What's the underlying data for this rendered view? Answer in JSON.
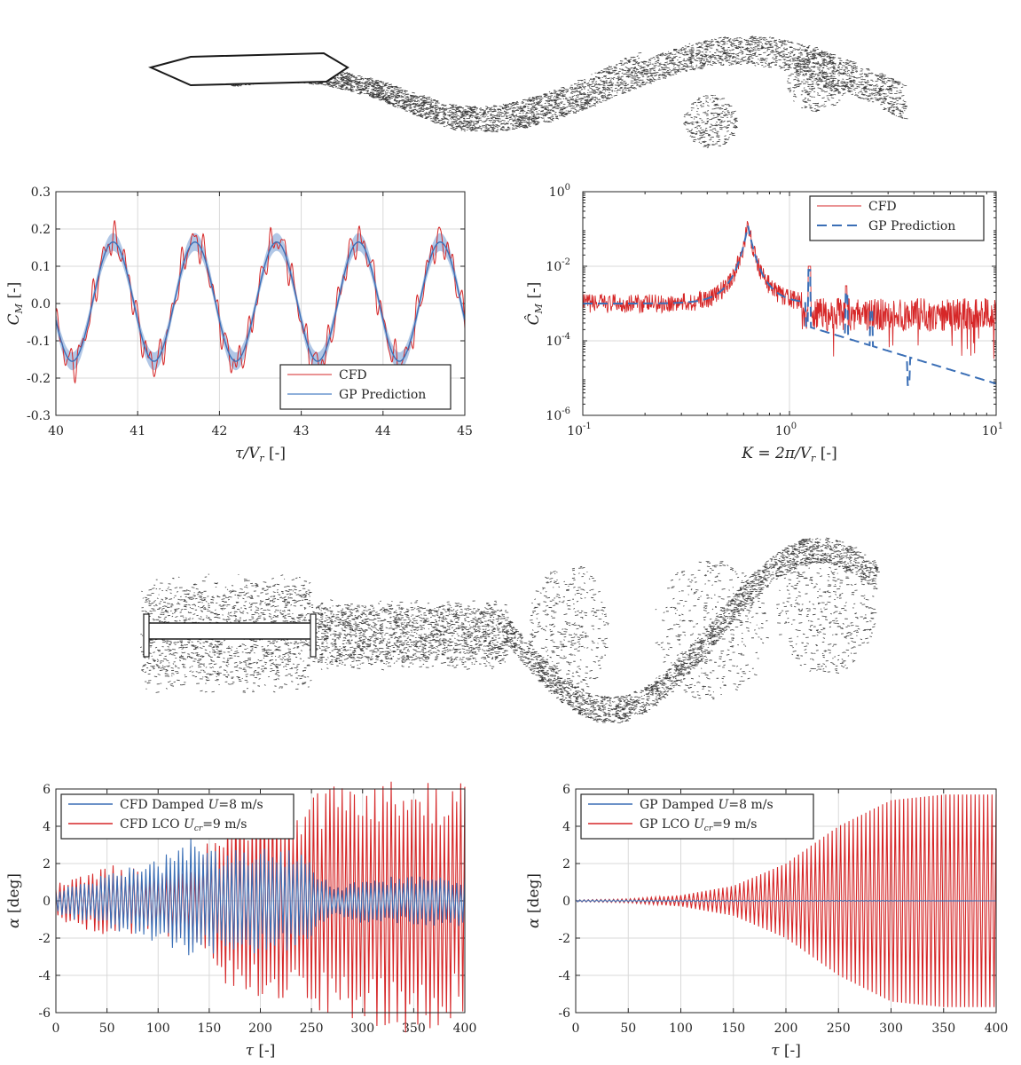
{
  "colors": {
    "cfd": "#d62728",
    "gp": "#3b6fb6",
    "gp_band": "#a9c1e3",
    "grid": "#d9d9d9",
    "axis": "#262626",
    "ink": "#1a1a1a"
  },
  "flow_visualizations": [
    {
      "body": "hexagonal-deck",
      "description_icon": "vortex-wake-icon"
    },
    {
      "body": "h-section-deck",
      "description_icon": "vortex-wake-icon"
    }
  ],
  "chart_data": [
    {
      "id": "cm_time",
      "type": "line",
      "xlabel": "τ/V",
      "xlabel_sub": "r",
      "xlabel_unit": "[-]",
      "ylabel": "C",
      "ylabel_sub": "M",
      "ylabel_unit": "[-]",
      "xlim": [
        40,
        45
      ],
      "ylim": [
        -0.3,
        0.3
      ],
      "xticks": [
        "40",
        "41",
        "42",
        "43",
        "44",
        "45"
      ],
      "yticks": [
        "-0.3",
        "-0.2",
        "-0.1",
        "0.0",
        "0.1",
        "0.2",
        "0.3"
      ],
      "grid": true,
      "legend_position": "bottom-right",
      "series": [
        {
          "name": "CFD",
          "color": "#d62728",
          "style": "solid",
          "amplitude": 0.165,
          "period": 1.0,
          "peaks_x": [
            40.7,
            41.7,
            42.7,
            43.7,
            44.7
          ],
          "peak_values": [
            0.18,
            0.21,
            0.19,
            0.21,
            0.19
          ],
          "trough_values": [
            -0.2,
            -0.17,
            -0.17,
            -0.17,
            -0.16
          ]
        },
        {
          "name": "GP Prediction",
          "color": "#3b6fb6",
          "style": "solid",
          "amplitude": 0.16,
          "period": 1.0,
          "peaks_x": [
            40.7,
            41.7,
            42.7,
            43.7,
            44.7
          ],
          "peak_values": [
            0.17,
            0.17,
            0.17,
            0.17,
            0.17
          ],
          "trough_values": [
            -0.16,
            -0.16,
            -0.16,
            -0.16,
            -0.16
          ],
          "confidence_band": 0.015
        }
      ]
    },
    {
      "id": "cm_spectrum",
      "type": "line",
      "xlabel": "K = 2π/V",
      "xlabel_sub": "r",
      "xlabel_unit": "[-]",
      "ylabel": "Ĉ",
      "ylabel_sub": "M",
      "ylabel_unit": "[-]",
      "xscale": "log",
      "yscale": "log",
      "xlim": [
        0.1,
        10
      ],
      "ylim": [
        1e-06,
        1
      ],
      "xticks": [
        "10",
        "10",
        "10"
      ],
      "xtick_exponents": [
        "-1",
        "0",
        "1"
      ],
      "yticks": [
        "10",
        "10",
        "10",
        "10"
      ],
      "ytick_exponents": [
        "-6",
        "-4",
        "-2",
        "0"
      ],
      "grid": true,
      "legend_position": "top-right",
      "series": [
        {
          "name": "CFD",
          "color": "#d62728",
          "style": "solid",
          "peak_K": 0.63,
          "peak_value": 0.13,
          "floor_low_K": 0.001,
          "floor_high_K": 0.0005
        },
        {
          "name": "GP Prediction",
          "color": "#3b6fb6",
          "style": "dashed",
          "peak_K": 0.63,
          "peak_value": 0.13,
          "low_K_value": 0.001,
          "value_at_K10": 1.8e-05,
          "spikes": [
            {
              "K": 1.25,
              "value": 0.008
            },
            {
              "K": 1.88,
              "value": 0.002
            },
            {
              "K": 2.5,
              "value": 0.0007
            },
            {
              "K": 3.75,
              "value": 6.5e-06
            }
          ]
        }
      ]
    },
    {
      "id": "alpha_cfd",
      "type": "line",
      "xlabel": "τ",
      "xlabel_unit": "[-]",
      "ylabel": "α",
      "ylabel_unit": "[deg]",
      "xlim": [
        0,
        400
      ],
      "ylim": [
        -6,
        6
      ],
      "xticks": [
        "0",
        "50",
        "100",
        "150",
        "200",
        "250",
        "300",
        "350",
        "400"
      ],
      "yticks": [
        "-6",
        "-4",
        "-2",
        "0",
        "2",
        "4",
        "6"
      ],
      "grid": true,
      "legend_position": "top-left",
      "series": [
        {
          "name": "CFD Damped",
          "legend_var": "U",
          "legend_val": "=8 m/s",
          "color": "#3b6fb6",
          "envelope_tau": [
            0,
            50,
            100,
            130,
            160,
            200,
            240,
            270,
            300,
            350,
            400
          ],
          "envelope_amp": [
            0.6,
            1.2,
            1.8,
            2.7,
            2.2,
            2.3,
            2.3,
            0.6,
            1.0,
            1.1,
            1.1
          ]
        },
        {
          "name": "CFD LCO",
          "legend_var": "U",
          "legend_sub": "cr",
          "legend_val": "=9 m/s",
          "color": "#d62728",
          "envelope_tau": [
            0,
            50,
            100,
            140,
            170,
            200,
            250,
            300,
            340,
            380,
            400
          ],
          "envelope_amp": [
            0.8,
            1.6,
            1.4,
            2.0,
            4.0,
            4.4,
            4.8,
            5.2,
            5.9,
            5.3,
            5.0
          ]
        }
      ]
    },
    {
      "id": "alpha_gp",
      "type": "line",
      "xlabel": "τ",
      "xlabel_unit": "[-]",
      "ylabel": "α",
      "ylabel_unit": "[deg]",
      "xlim": [
        0,
        400
      ],
      "ylim": [
        -6,
        6
      ],
      "xticks": [
        "0",
        "50",
        "100",
        "150",
        "200",
        "250",
        "300",
        "350",
        "400"
      ],
      "yticks": [
        "-6",
        "-4",
        "-2",
        "0",
        "2",
        "4",
        "6"
      ],
      "grid": true,
      "legend_position": "top-left",
      "series": [
        {
          "name": "GP Damped",
          "legend_var": "U",
          "legend_val": "=8 m/s",
          "color": "#3b6fb6",
          "envelope_tau": [
            0,
            400
          ],
          "envelope_amp": [
            0.05,
            0.0
          ]
        },
        {
          "name": "GP LCO",
          "legend_var": "U",
          "legend_sub": "cr",
          "legend_val": "=9 m/s",
          "color": "#d62728",
          "envelope_tau": [
            0,
            50,
            100,
            150,
            200,
            250,
            300,
            350,
            400
          ],
          "envelope_amp": [
            0.05,
            0.1,
            0.3,
            0.8,
            2.0,
            4.0,
            5.4,
            5.7,
            5.7
          ]
        }
      ]
    }
  ]
}
